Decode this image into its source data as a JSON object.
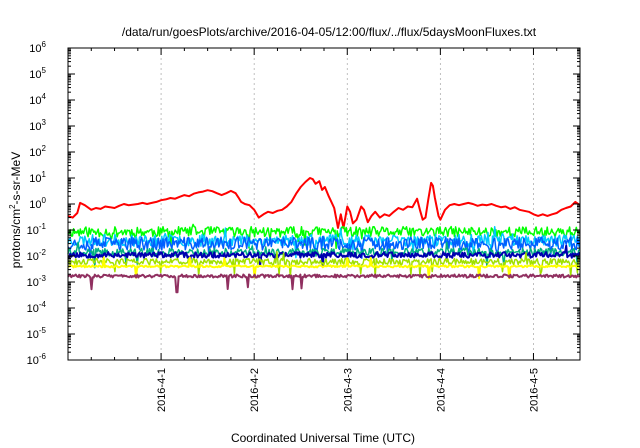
{
  "chart_data": {
    "type": "line",
    "title": "/data/run/goesPlots/archive/2016-04-05/12:00/flux/../flux/5daysMoonFluxes.txt",
    "xlabel": "Coordinated Universal Time (UTC)",
    "ylabel": {
      "base": "protons/cm",
      "sup": "2",
      "rest": "-s-sr-MeV"
    },
    "xlim": [
      0,
      5.5
    ],
    "ylim_log10": [
      -6,
      6
    ],
    "yscale": "log",
    "x_unit": "days after 2016-03-31 00:00 UTC",
    "x_ticks": [
      {
        "x": 1,
        "label": "2016-4-1"
      },
      {
        "x": 2,
        "label": "2016-4-2"
      },
      {
        "x": 3,
        "label": "2016-4-3"
      },
      {
        "x": 4,
        "label": "2016-4-4"
      },
      {
        "x": 5,
        "label": "2016-4-5"
      }
    ],
    "y_ticks": [
      {
        "exp": -6,
        "label": "10",
        "sup": "-6"
      },
      {
        "exp": -5,
        "label": "10",
        "sup": "-5"
      },
      {
        "exp": -4,
        "label": "10",
        "sup": "-4"
      },
      {
        "exp": -3,
        "label": "10",
        "sup": "-3"
      },
      {
        "exp": -2,
        "label": "10",
        "sup": "-2"
      },
      {
        "exp": -1,
        "label": "10",
        "sup": "-1"
      },
      {
        "exp": 0,
        "label": "10",
        "sup": "0"
      },
      {
        "exp": 1,
        "label": "10",
        "sup": "1"
      },
      {
        "exp": 2,
        "label": "10",
        "sup": "2"
      },
      {
        "exp": 3,
        "label": "10",
        "sup": "3"
      },
      {
        "exp": 4,
        "label": "10",
        "sup": "4"
      },
      {
        "exp": 5,
        "label": "10",
        "sup": "5"
      },
      {
        "exp": 6,
        "label": "10",
        "sup": "6"
      }
    ],
    "grid": "dashed vertical lines at x ticks",
    "legend": "none",
    "series": [
      {
        "color": "#ff0000",
        "width": 2,
        "points": [
          [
            0.0,
            0.35
          ],
          [
            0.05,
            0.3
          ],
          [
            0.1,
            0.45
          ],
          [
            0.13,
            1.1
          ],
          [
            0.18,
            0.9
          ],
          [
            0.25,
            0.6
          ],
          [
            0.3,
            0.7
          ],
          [
            0.35,
            0.65
          ],
          [
            0.4,
            0.8
          ],
          [
            0.45,
            0.75
          ],
          [
            0.5,
            0.7
          ],
          [
            0.55,
            0.85
          ],
          [
            0.6,
            1.0
          ],
          [
            0.65,
            0.9
          ],
          [
            0.7,
            0.95
          ],
          [
            0.75,
            1.0
          ],
          [
            0.8,
            1.1
          ],
          [
            0.85,
            1.0
          ],
          [
            0.9,
            1.1
          ],
          [
            0.95,
            1.2
          ],
          [
            1.0,
            1.4
          ],
          [
            1.05,
            1.5
          ],
          [
            1.1,
            1.7
          ],
          [
            1.15,
            1.6
          ],
          [
            1.2,
            1.9
          ],
          [
            1.25,
            2.2
          ],
          [
            1.3,
            2.0
          ],
          [
            1.35,
            2.5
          ],
          [
            1.4,
            2.8
          ],
          [
            1.45,
            3.0
          ],
          [
            1.5,
            3.4
          ],
          [
            1.55,
            3.1
          ],
          [
            1.6,
            2.6
          ],
          [
            1.65,
            2.2
          ],
          [
            1.7,
            2.6
          ],
          [
            1.75,
            3.2
          ],
          [
            1.8,
            2.6
          ],
          [
            1.83,
            1.8
          ],
          [
            1.86,
            1.2
          ],
          [
            1.9,
            1.0
          ],
          [
            1.95,
            0.9
          ],
          [
            2.0,
            0.6
          ],
          [
            2.05,
            0.3
          ],
          [
            2.1,
            0.4
          ],
          [
            2.15,
            0.5
          ],
          [
            2.2,
            0.45
          ],
          [
            2.25,
            0.55
          ],
          [
            2.3,
            0.6
          ],
          [
            2.35,
            0.8
          ],
          [
            2.4,
            1.2
          ],
          [
            2.45,
            2.5
          ],
          [
            2.5,
            4.5
          ],
          [
            2.55,
            7.0
          ],
          [
            2.6,
            10.0
          ],
          [
            2.63,
            9.0
          ],
          [
            2.66,
            6.0
          ],
          [
            2.7,
            7.5
          ],
          [
            2.73,
            3.5
          ],
          [
            2.76,
            4.5
          ],
          [
            2.8,
            2.0
          ],
          [
            2.83,
            1.2
          ],
          [
            2.86,
            0.7
          ],
          [
            2.9,
            0.12
          ],
          [
            2.93,
            0.4
          ],
          [
            2.96,
            0.12
          ],
          [
            3.0,
            0.8
          ],
          [
            3.03,
            0.5
          ],
          [
            3.06,
            0.18
          ],
          [
            3.1,
            0.25
          ],
          [
            3.15,
            0.8
          ],
          [
            3.18,
            0.6
          ],
          [
            3.22,
            0.2
          ],
          [
            3.26,
            0.35
          ],
          [
            3.3,
            0.5
          ],
          [
            3.35,
            0.3
          ],
          [
            3.4,
            0.4
          ],
          [
            3.45,
            0.35
          ],
          [
            3.5,
            0.5
          ],
          [
            3.55,
            0.7
          ],
          [
            3.6,
            0.6
          ],
          [
            3.65,
            0.8
          ],
          [
            3.7,
            0.75
          ],
          [
            3.75,
            1.6
          ],
          [
            3.78,
            0.6
          ],
          [
            3.81,
            0.25
          ],
          [
            3.84,
            0.3
          ],
          [
            3.87,
            1.5
          ],
          [
            3.9,
            6.5
          ],
          [
            3.92,
            5.0
          ],
          [
            3.94,
            1.8
          ],
          [
            3.96,
            0.8
          ],
          [
            3.98,
            0.35
          ],
          [
            4.0,
            0.25
          ],
          [
            4.05,
            0.6
          ],
          [
            4.1,
            0.9
          ],
          [
            4.15,
            1.0
          ],
          [
            4.2,
            0.9
          ],
          [
            4.25,
            1.0
          ],
          [
            4.3,
            1.1
          ],
          [
            4.35,
            1.0
          ],
          [
            4.4,
            0.85
          ],
          [
            4.45,
            0.95
          ],
          [
            4.5,
            0.9
          ],
          [
            4.55,
            1.0
          ],
          [
            4.6,
            0.85
          ],
          [
            4.65,
            0.75
          ],
          [
            4.7,
            0.8
          ],
          [
            4.75,
            0.65
          ],
          [
            4.8,
            0.75
          ],
          [
            4.85,
            0.6
          ],
          [
            4.9,
            0.55
          ],
          [
            4.95,
            0.5
          ],
          [
            5.0,
            0.4
          ],
          [
            5.05,
            0.35
          ],
          [
            5.1,
            0.4
          ],
          [
            5.15,
            0.35
          ],
          [
            5.2,
            0.4
          ],
          [
            5.25,
            0.45
          ],
          [
            5.3,
            0.6
          ],
          [
            5.35,
            0.7
          ],
          [
            5.4,
            0.8
          ],
          [
            5.45,
            1.2
          ],
          [
            5.5,
            0.9
          ]
        ]
      },
      {
        "color": "#00ff00",
        "width": 1.5,
        "level": 0.085,
        "jitter": 0.4,
        "spikes": 0.25,
        "seed": 11
      },
      {
        "color": "#00c8ff",
        "width": 1.5,
        "level": 0.04,
        "jitter": 0.45,
        "spikes": 0.2,
        "seed": 23
      },
      {
        "color": "#0060ff",
        "width": 1.5,
        "level": 0.03,
        "jitter": 0.5,
        "spikes": 0.3,
        "seed": 37
      },
      {
        "color": "#00b080",
        "width": 1.5,
        "level": 0.014,
        "jitter": 0.3,
        "spikes": 0.2,
        "seed": 41
      },
      {
        "color": "#0000b0",
        "width": 2.0,
        "level": 0.011,
        "jitter": 0.22,
        "spikes": 0.1,
        "seed": 53
      },
      {
        "color": "#a0e000",
        "width": 1.5,
        "level": 0.006,
        "jitter": 0.25,
        "spikes": 0.35,
        "seed": 61
      },
      {
        "color": "#ffff00",
        "width": 2.0,
        "level": 0.004,
        "jitter": 0.08,
        "spikes": 0.15,
        "seed": 71
      },
      {
        "color": "#903060",
        "width": 2.0,
        "level": 0.0017,
        "jitter": 0.12,
        "spikes": 0.1,
        "seed": 83,
        "dip": [
          1.17,
          0.0004
        ]
      }
    ]
  }
}
